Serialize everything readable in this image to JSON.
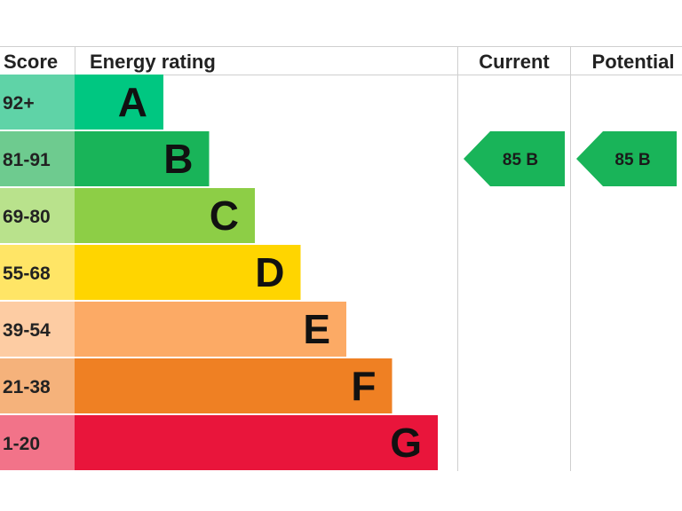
{
  "headers": {
    "score": "Score",
    "energy_rating": "Energy rating",
    "current": "Current",
    "potential": "Potential"
  },
  "chart_data": {
    "type": "bar",
    "categories": [
      "A",
      "B",
      "C",
      "D",
      "E",
      "F",
      "G"
    ],
    "bands": [
      {
        "letter": "A",
        "score": "92+",
        "color": "#00c781",
        "score_color": "#5fd3a7"
      },
      {
        "letter": "B",
        "score": "81-91",
        "color": "#19b459",
        "score_color": "#6ecb8f"
      },
      {
        "letter": "C",
        "score": "69-80",
        "color": "#8dce46",
        "score_color": "#b9e28c"
      },
      {
        "letter": "D",
        "score": "55-68",
        "color": "#ffd500",
        "score_color": "#ffe566"
      },
      {
        "letter": "E",
        "score": "39-54",
        "color": "#fcaa65",
        "score_color": "#fdccA3"
      },
      {
        "letter": "F",
        "score": "21-38",
        "color": "#ef8023",
        "score_color": "#f5b27b"
      },
      {
        "letter": "G",
        "score": "1-20",
        "color": "#e9153b",
        "score_color": "#f27389"
      }
    ],
    "current": {
      "value": 85,
      "band": "B",
      "label": "85  B",
      "color": "#19b459"
    },
    "potential": {
      "value": 85,
      "band": "B",
      "label": "85  B",
      "color": "#19b459"
    }
  }
}
